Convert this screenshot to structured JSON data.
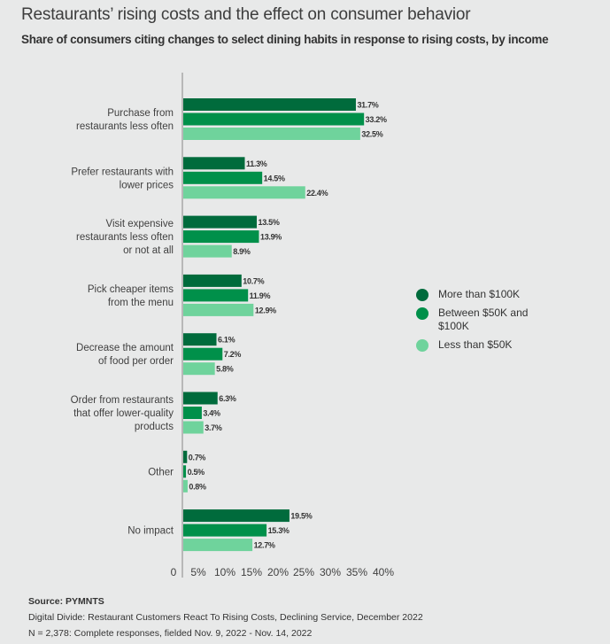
{
  "chart_data": {
    "type": "bar",
    "orientation": "horizontal",
    "title": "Restaurants’ rising costs and the effect on consumer behavior",
    "subtitle": "Share of consumers citing changes to select dining habits in response to rising costs, by income",
    "xlabel": "",
    "ylabel": "",
    "xlim": [
      0,
      40
    ],
    "x_ticks": [
      "0",
      "5%",
      "10%",
      "15%",
      "20%",
      "25%",
      "30%",
      "35%",
      "40%"
    ],
    "grid": false,
    "legend_position": "right",
    "categories": [
      [
        "Purchase from",
        "restaurants less often"
      ],
      [
        "Prefer restaurants with",
        "lower prices"
      ],
      [
        "Visit expensive",
        "restaurants less often",
        "or not at all"
      ],
      [
        "Pick cheaper items",
        "from the menu"
      ],
      [
        "Decrease the amount",
        "of food per order"
      ],
      [
        "Order from restaurants",
        "that offer lower-quality",
        "products"
      ],
      [
        "Other"
      ],
      [
        "No impact"
      ]
    ],
    "series": [
      {
        "name": "More than $100K",
        "color": "#006b3c",
        "values": [
          31.7,
          11.3,
          13.5,
          10.7,
          6.1,
          6.3,
          0.7,
          19.5
        ]
      },
      {
        "name": "Between $50K and $100K",
        "color": "#00904a",
        "values": [
          33.2,
          14.5,
          13.9,
          11.9,
          7.2,
          3.4,
          0.5,
          15.3
        ]
      },
      {
        "name": "Less than $50K",
        "color": "#6fd39c",
        "values": [
          32.5,
          22.4,
          8.9,
          12.9,
          5.8,
          3.7,
          0.8,
          12.7
        ]
      }
    ],
    "value_suffix": "%"
  },
  "legend": [
    {
      "label": "More than $100K",
      "color": "#006b3c"
    },
    {
      "label": "Between $50K and $100K",
      "color": "#00904a"
    },
    {
      "label": "Less than $50K",
      "color": "#6fd39c"
    }
  ],
  "footer": {
    "source": "Source: PYMNTS",
    "report": "Digital Divide: Restaurant Customers React To Rising Costs, Declining Service,  December 2022",
    "sample": "N = 2,378: Complete responses, fielded Nov. 9, 2022 - Nov. 14, 2022"
  }
}
